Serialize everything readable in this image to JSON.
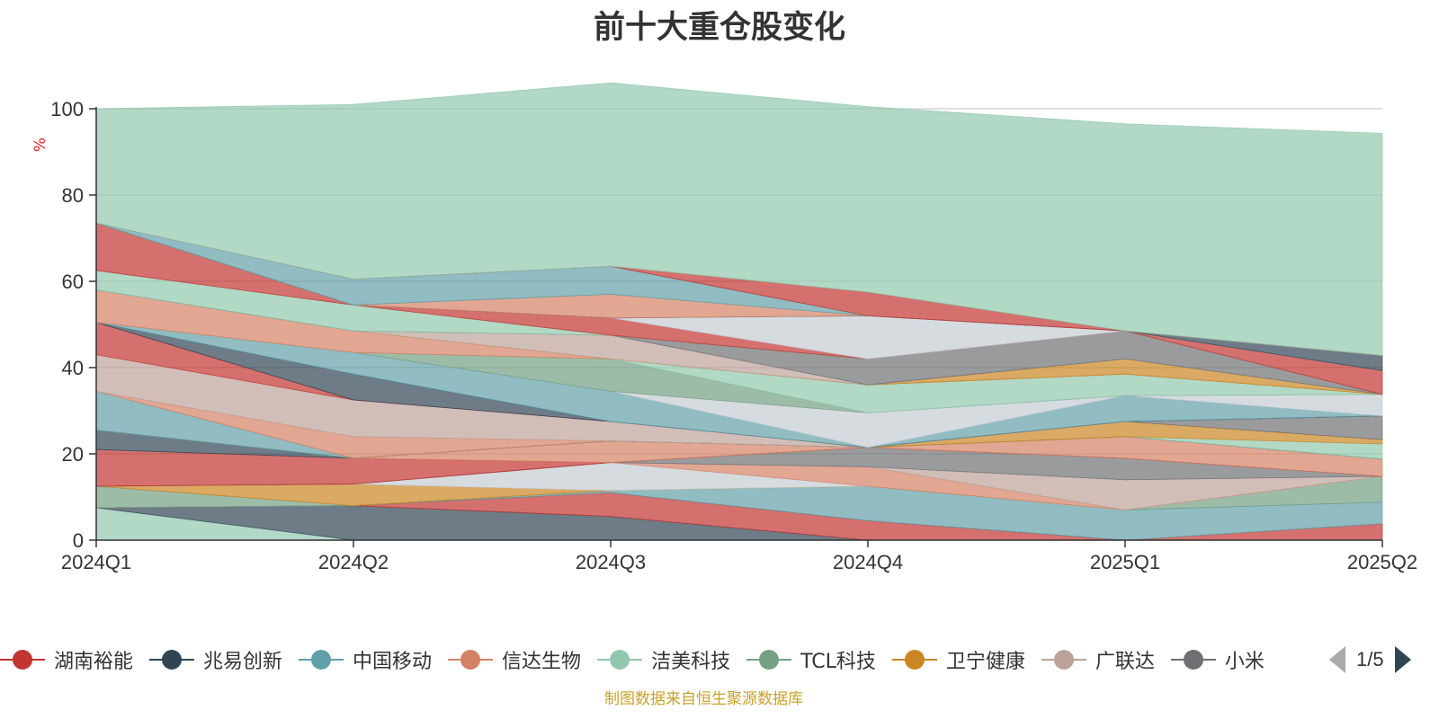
{
  "source": "制图数据来自恒生聚源数据库",
  "legend": {
    "page": "1/5",
    "items": [
      {
        "name": "湖南裕能",
        "color": "#c23531"
      },
      {
        "name": "兆易创新",
        "color": "#2f4554"
      },
      {
        "name": "中国移动",
        "color": "#61a0a8"
      },
      {
        "name": "信达生物",
        "color": "#d48265"
      },
      {
        "name": "洁美科技",
        "color": "#91c7ae"
      },
      {
        "name": "TCL科技",
        "color": "#749f83"
      },
      {
        "name": "卫宁健康",
        "color": "#ca8622"
      },
      {
        "name": "广联达",
        "color": "#bda29a"
      },
      {
        "name": "小米",
        "color": "#6e7074"
      }
    ]
  },
  "chart_data": {
    "type": "area",
    "title": "前十大重仓股变化",
    "ylabel": "%",
    "xlabel": "",
    "ylim": [
      0,
      100
    ],
    "yticks": [
      0,
      20,
      40,
      60,
      80,
      100
    ],
    "categories": [
      "2024Q1",
      "2024Q2",
      "2024Q3",
      "2024Q4",
      "2025Q1",
      "2025Q2"
    ],
    "grid": true,
    "legend_position": "bottom",
    "bands": [
      {
        "color": "#91c7ae",
        "values": [
          7.5,
          0,
          0,
          0,
          0,
          0
        ]
      },
      {
        "color": "#2f4554",
        "values": [
          0,
          8,
          5.5,
          0,
          0,
          0
        ]
      },
      {
        "color": "#c23531",
        "values": [
          0,
          0,
          5.5,
          4.5,
          0,
          0
        ]
      },
      {
        "color": "#c23531",
        "values": [
          0,
          0,
          0,
          0,
          0,
          3.8
        ]
      },
      {
        "color": "#61a0a8",
        "values": [
          0,
          0,
          0.5,
          8,
          7,
          5
        ]
      },
      {
        "color": "#749f83",
        "values": [
          5,
          0,
          0,
          0,
          0,
          6
        ]
      },
      {
        "color": "#ca8622",
        "values": [
          0,
          5,
          0,
          0,
          0,
          0
        ]
      },
      {
        "color": "#c4ccd3",
        "values": [
          0,
          0,
          6.5,
          0,
          0,
          0
        ]
      },
      {
        "color": "#d48265",
        "values": [
          0,
          0,
          0,
          4.5,
          0,
          0
        ]
      },
      {
        "color": "#bda29a",
        "values": [
          0,
          0,
          0,
          0,
          7,
          0
        ]
      },
      {
        "color": "#6e7074",
        "values": [
          0,
          0,
          0,
          4.5,
          5,
          0
        ]
      },
      {
        "color": "#c23531",
        "values": [
          8.5,
          6,
          0,
          0,
          0,
          0
        ]
      },
      {
        "color": "#d48265",
        "values": [
          0,
          0,
          5,
          0,
          5,
          4
        ]
      },
      {
        "color": "#2f4554",
        "values": [
          4.5,
          0,
          0,
          0,
          0,
          0
        ]
      },
      {
        "color": "#91c7ae",
        "values": [
          0,
          0,
          0,
          0,
          0,
          3.5
        ]
      },
      {
        "color": "#ca8622",
        "values": [
          0,
          0,
          0,
          0,
          3.5,
          1
        ]
      },
      {
        "color": "#6e7074",
        "values": [
          0,
          0,
          0,
          0,
          0,
          5.5
        ]
      },
      {
        "color": "#61a0a8",
        "values": [
          9,
          0,
          0,
          0,
          0,
          0
        ]
      },
      {
        "color": "#d48265",
        "values": [
          0,
          5,
          0,
          0,
          0,
          0
        ]
      },
      {
        "color": "#bda29a",
        "values": [
          8.5,
          8.5,
          4.5,
          0,
          0,
          0
        ]
      },
      {
        "color": "#c23531",
        "values": [
          7.5,
          0,
          0,
          0,
          0,
          0
        ]
      },
      {
        "color": "#2f4554",
        "values": [
          0,
          6,
          0,
          0,
          0,
          0
        ]
      },
      {
        "color": "#61a0a8",
        "values": [
          0,
          5,
          7,
          0,
          6,
          0
        ]
      },
      {
        "color": "#c4ccd3",
        "values": [
          0,
          0,
          0,
          8,
          0,
          5
        ]
      },
      {
        "color": "#749f83",
        "values": [
          0,
          0,
          7.5,
          0,
          0,
          0
        ]
      },
      {
        "color": "#91c7ae",
        "values": [
          0,
          0,
          0,
          6.5,
          5,
          0
        ]
      },
      {
        "color": "#d48265",
        "values": [
          7.5,
          5,
          0,
          0,
          0,
          0
        ]
      },
      {
        "color": "#ca8622",
        "values": [
          0,
          0,
          0,
          0,
          3.5,
          0
        ]
      },
      {
        "color": "#bda29a",
        "values": [
          0,
          0,
          5.5,
          0,
          0,
          0
        ]
      },
      {
        "color": "#6e7074",
        "values": [
          0,
          0,
          0,
          6,
          6.5,
          0
        ]
      },
      {
        "color": "#91c7ae",
        "values": [
          4.5,
          6,
          0,
          0,
          0,
          0
        ]
      },
      {
        "color": "#c23531",
        "values": [
          11,
          0,
          4,
          0,
          0,
          5.5
        ]
      },
      {
        "color": "#c4ccd3",
        "values": [
          0,
          0,
          0,
          10,
          0,
          0
        ]
      },
      {
        "color": "#2f4554",
        "values": [
          0,
          0,
          0,
          0,
          0,
          3.5
        ]
      },
      {
        "color": "#d48265",
        "values": [
          0,
          0,
          5.5,
          0,
          0,
          0
        ]
      },
      {
        "color": "#61a0a8",
        "values": [
          0,
          6,
          6.5,
          0,
          0,
          0
        ]
      },
      {
        "color": "#c23531",
        "values": [
          0,
          0,
          0,
          5.5,
          0,
          0
        ]
      },
      {
        "color": "#91c7ae",
        "values": [
          26.5,
          40.5,
          42.5,
          43,
          48,
          51.5
        ]
      }
    ]
  }
}
